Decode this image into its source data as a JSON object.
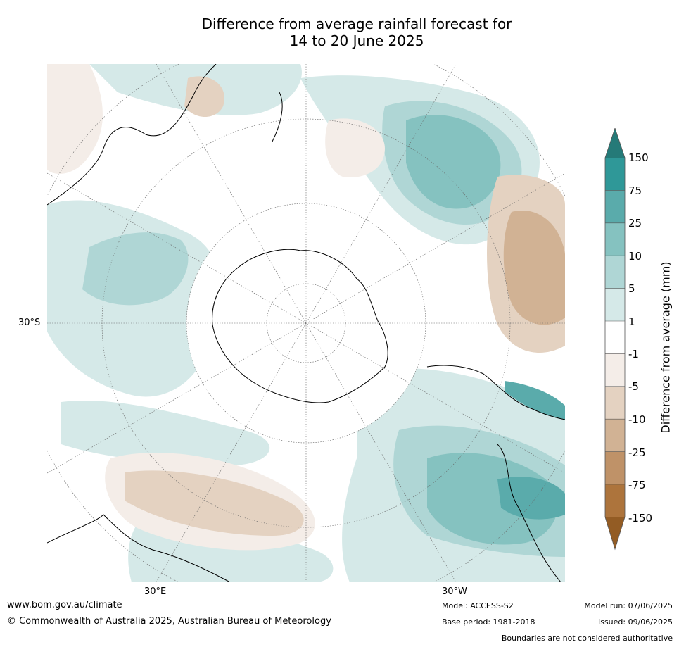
{
  "title": {
    "line1": "Difference from average rainfall forecast for",
    "line2": "14 to 20 June 2025"
  },
  "map": {
    "projection": "south-polar-stereographic",
    "lat_label": "30°S",
    "lon_labels": [
      "30°E",
      "30°W"
    ]
  },
  "colorbar": {
    "title": "Difference from average (mm)",
    "tick_labels": [
      "150",
      "75",
      "25",
      "10",
      "5",
      "1",
      "-1",
      "-5",
      "-10",
      "-25",
      "-75",
      "-150"
    ],
    "colors": {
      "above_150": "#257a78",
      "75_150": "#2f9898",
      "25_75": "#5aabab",
      "10_25": "#85c2c0",
      "5_10": "#afd6d5",
      "1_5": "#d5e9e8",
      "neutral": "#ffffff",
      "m5_m1": "#f4ede8",
      "m10_m5": "#e4d2c1",
      "m25_m10": "#d1b294",
      "m75_m25": "#bf9268",
      "m150_m75": "#ad743c",
      "below_m150": "#935c24"
    }
  },
  "footer": {
    "url": "www.bom.gov.au/climate",
    "copyright": "© Commonwealth of Australia 2025, Australian Bureau of Meteorology",
    "model": "Model: ACCESS-S2",
    "base_period": "Base period: 1981-2018",
    "model_run": "Model run: 07/06/2025",
    "issued": "Issued: 09/06/2025",
    "boundaries_note": "Boundaries are not considered authoritative"
  }
}
